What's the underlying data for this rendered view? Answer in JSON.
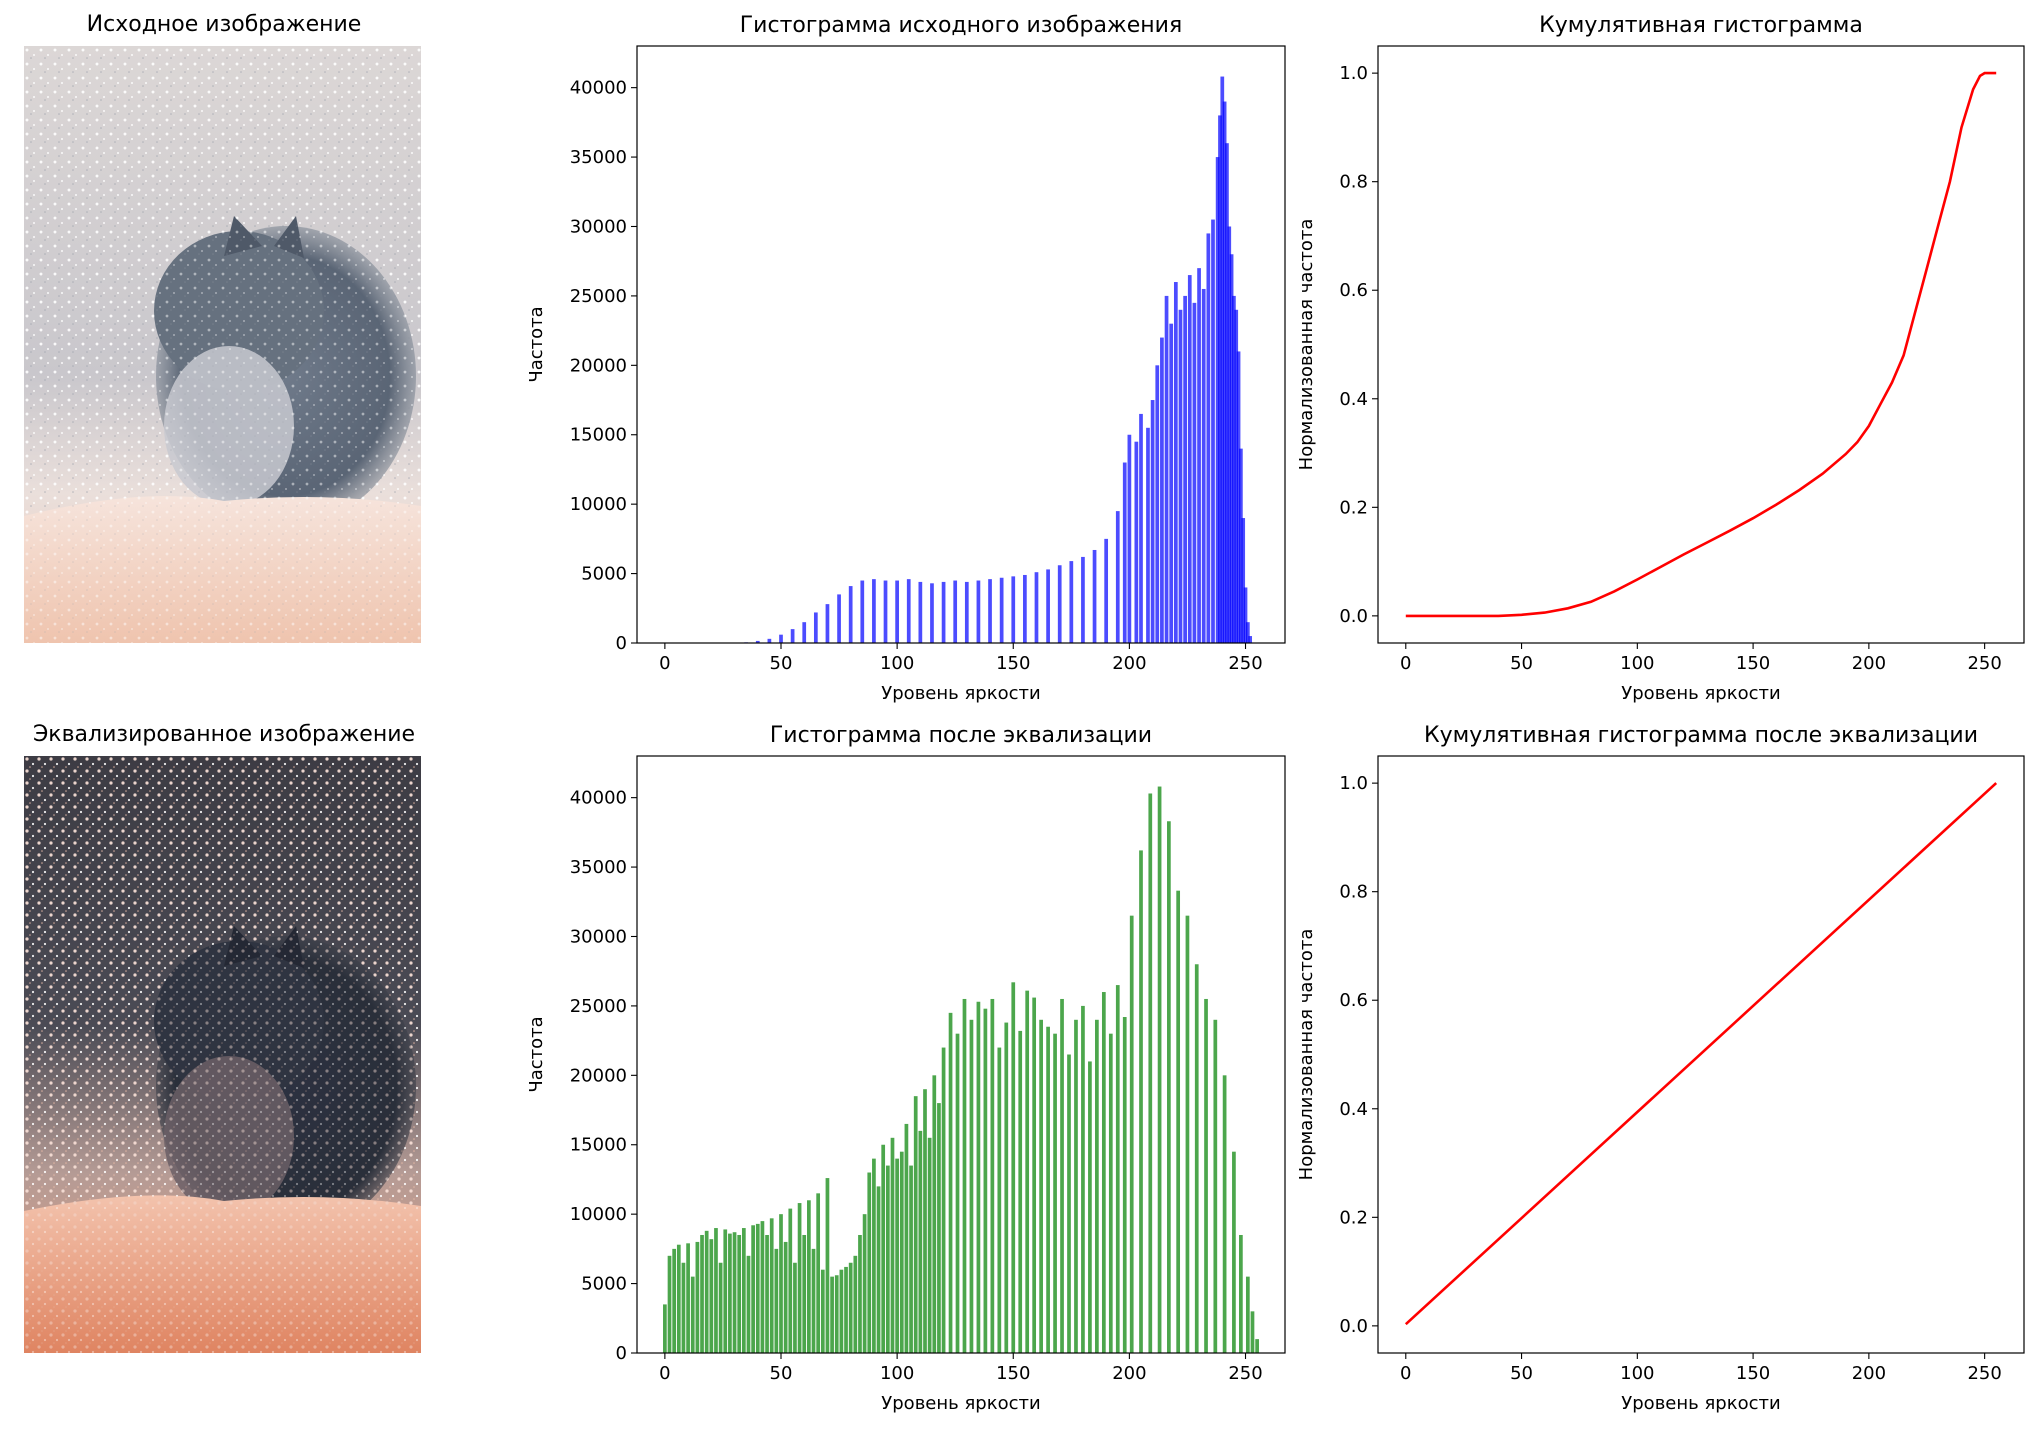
{
  "images": [
    {
      "title": "Исходное изображение",
      "variant": "original"
    },
    {
      "title": "Эквализированное изображение",
      "variant": "equalized"
    }
  ],
  "colors": {
    "hist_original": "#0000ff",
    "hist_equalized": "#008000",
    "cdf": "#ff0000"
  },
  "chart_data": [
    {
      "type": "bar",
      "title": "Гистограмма исходного изображения",
      "xlabel": "Уровень яркости",
      "ylabel": "Частота",
      "xlim": [
        -12,
        267
      ],
      "ylim": [
        0,
        43000
      ],
      "xticks": [
        0,
        50,
        100,
        150,
        200,
        250
      ],
      "yticks": [
        0,
        5000,
        10000,
        15000,
        20000,
        25000,
        30000,
        35000,
        40000
      ],
      "color": "#0000ff",
      "opacity": 0.7,
      "x": [
        0,
        5,
        10,
        15,
        20,
        25,
        30,
        35,
        40,
        45,
        50,
        55,
        60,
        65,
        70,
        75,
        80,
        85,
        90,
        95,
        100,
        105,
        110,
        115,
        120,
        125,
        130,
        135,
        140,
        145,
        150,
        155,
        160,
        165,
        170,
        175,
        180,
        185,
        190,
        195,
        198,
        200,
        203,
        205,
        208,
        210,
        212,
        214,
        216,
        218,
        220,
        222,
        224,
        226,
        228,
        230,
        232,
        234,
        236,
        238,
        239,
        240,
        241,
        242,
        243,
        244,
        245,
        246,
        247,
        248,
        249,
        250,
        251,
        252,
        253
      ],
      "values": [
        0,
        0,
        0,
        0,
        0,
        0,
        0,
        50,
        150,
        300,
        600,
        1000,
        1500,
        2200,
        2800,
        3500,
        4100,
        4500,
        4600,
        4500,
        4500,
        4600,
        4400,
        4300,
        4400,
        4500,
        4400,
        4500,
        4600,
        4700,
        4800,
        4900,
        5100,
        5300,
        5600,
        5900,
        6200,
        6700,
        7500,
        9500,
        13000,
        15000,
        14500,
        16500,
        15500,
        17500,
        20000,
        22000,
        25000,
        23000,
        26000,
        24000,
        25000,
        26500,
        24500,
        27000,
        25500,
        29500,
        30500,
        35000,
        38000,
        40800,
        39000,
        36000,
        30000,
        28000,
        25000,
        24000,
        21000,
        14000,
        9000,
        4000,
        1500,
        500,
        0
      ]
    },
    {
      "type": "line",
      "title": "Кумулятивная гистограмма",
      "xlabel": "Уровень яркости",
      "ylabel": "Нормализованная частота",
      "xlim": [
        -12,
        267
      ],
      "ylim": [
        -0.05,
        1.05
      ],
      "xticks": [
        0,
        50,
        100,
        150,
        200,
        250
      ],
      "yticks": [
        0.0,
        0.2,
        0.4,
        0.6,
        0.8,
        1.0
      ],
      "color": "#ff0000",
      "x": [
        0,
        20,
        40,
        50,
        60,
        70,
        80,
        90,
        100,
        110,
        120,
        130,
        140,
        150,
        160,
        170,
        180,
        190,
        195,
        200,
        205,
        210,
        215,
        220,
        225,
        230,
        235,
        240,
        245,
        248,
        250,
        255
      ],
      "y": [
        0,
        0,
        0,
        0.002,
        0.006,
        0.014,
        0.026,
        0.045,
        0.067,
        0.09,
        0.113,
        0.135,
        0.157,
        0.18,
        0.205,
        0.232,
        0.262,
        0.298,
        0.32,
        0.35,
        0.39,
        0.43,
        0.48,
        0.56,
        0.64,
        0.72,
        0.8,
        0.9,
        0.97,
        0.995,
        1.0,
        1.0
      ]
    },
    {
      "type": "bar",
      "title": "Гистограмма после эквализации",
      "xlabel": "Уровень яркости",
      "ylabel": "Частота",
      "xlim": [
        -12,
        267
      ],
      "ylim": [
        0,
        43000
      ],
      "xticks": [
        0,
        50,
        100,
        150,
        200,
        250
      ],
      "yticks": [
        0,
        5000,
        10000,
        15000,
        20000,
        25000,
        30000,
        35000,
        40000
      ],
      "color": "#008000",
      "opacity": 0.7,
      "x": [
        0,
        2,
        4,
        6,
        8,
        10,
        12,
        14,
        16,
        18,
        20,
        22,
        24,
        26,
        28,
        30,
        32,
        34,
        36,
        38,
        40,
        42,
        44,
        46,
        48,
        50,
        52,
        54,
        56,
        58,
        60,
        62,
        64,
        66,
        68,
        70,
        72,
        74,
        76,
        78,
        80,
        82,
        84,
        86,
        88,
        90,
        92,
        94,
        96,
        98,
        100,
        102,
        104,
        106,
        108,
        110,
        112,
        114,
        116,
        118,
        120,
        123,
        126,
        129,
        132,
        135,
        138,
        141,
        144,
        147,
        150,
        153,
        156,
        159,
        162,
        165,
        168,
        171,
        174,
        177,
        180,
        183,
        186,
        189,
        192,
        195,
        198,
        201,
        205,
        209,
        213,
        217,
        221,
        225,
        229,
        233,
        237,
        241,
        245,
        248,
        251,
        253,
        255
      ],
      "values": [
        3500,
        7000,
        7500,
        7800,
        6500,
        7900,
        5500,
        8000,
        8500,
        8800,
        8200,
        9000,
        6500,
        8900,
        8600,
        8700,
        8500,
        9000,
        7000,
        9200,
        9300,
        9500,
        8500,
        9700,
        7500,
        10000,
        8000,
        10400,
        6500,
        10800,
        8500,
        11000,
        7500,
        11500,
        6000,
        12600,
        5500,
        5600,
        6000,
        6200,
        6500,
        7000,
        8500,
        10000,
        13000,
        14000,
        12000,
        15000,
        13500,
        15500,
        14000,
        14500,
        16500,
        13500,
        18500,
        16000,
        19000,
        15500,
        20000,
        18000,
        22000,
        24500,
        23000,
        25500,
        24000,
        25300,
        24800,
        25500,
        22000,
        23800,
        26700,
        23200,
        26100,
        25600,
        24000,
        23500,
        23000,
        25500,
        21500,
        24000,
        25000,
        21000,
        24000,
        26000,
        23000,
        26500,
        24200,
        31500,
        36200,
        40300,
        40800,
        38300,
        33300,
        31500,
        28000,
        25500,
        24000,
        20000,
        14500,
        8500,
        5500,
        3000,
        1000
      ]
    },
    {
      "type": "line",
      "title": "Кумулятивная гистограмма после эквализации",
      "xlabel": "Уровень яркости",
      "ylabel": "Нормализованная частота",
      "xlim": [
        -12,
        267
      ],
      "ylim": [
        -0.05,
        1.05
      ],
      "xticks": [
        0,
        50,
        100,
        150,
        200,
        250
      ],
      "yticks": [
        0.0,
        0.2,
        0.4,
        0.6,
        0.8,
        1.0
      ],
      "color": "#ff0000",
      "x": [
        0,
        255
      ],
      "y": [
        0.003,
        1.0
      ]
    }
  ]
}
